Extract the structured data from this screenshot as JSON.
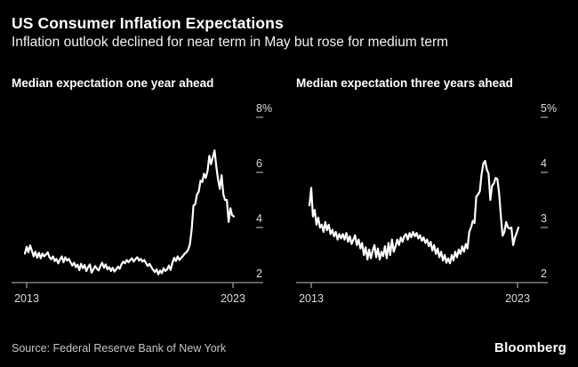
{
  "header": {
    "title": "US Consumer Inflation Expectations",
    "subtitle": "Inflation outlook declined for near term in May but rose for medium term"
  },
  "footer": {
    "source": "Source: Federal Reserve Bank of New York",
    "brand": "Bloomberg"
  },
  "colors": {
    "background": "#000000",
    "text_primary": "#ffffff",
    "axis_label": "#dcdcdc",
    "axis_line": "#9a9a9a",
    "data_line": "#ffffff",
    "source_text": "#c6c6c6"
  },
  "chart_data": [
    {
      "type": "line",
      "title": "Median expectation one year ahead",
      "unit": "%",
      "x_start": 2013.42,
      "x_step": "monthly",
      "x_ticks": [
        "2013",
        "2023"
      ],
      "y_ticks": [
        "8%",
        "6",
        "4",
        "2"
      ],
      "y_min": 2,
      "y_max": 8,
      "grid": false,
      "legend": "none",
      "values": [
        3.05,
        3.3,
        3.1,
        3.35,
        3.15,
        2.95,
        3.12,
        2.9,
        3.08,
        2.88,
        3.05,
        2.95,
        3.02,
        3.1,
        2.92,
        2.85,
        2.95,
        2.78,
        2.86,
        2.7,
        2.84,
        2.95,
        2.74,
        2.92,
        2.8,
        2.86,
        2.74,
        2.62,
        2.72,
        2.56,
        2.65,
        2.45,
        2.68,
        2.52,
        2.64,
        2.42,
        2.56,
        2.66,
        2.36,
        2.48,
        2.6,
        2.5,
        2.44,
        2.6,
        2.72,
        2.54,
        2.66,
        2.48,
        2.56,
        2.42,
        2.54,
        2.4,
        2.48,
        2.58,
        2.5,
        2.66,
        2.76,
        2.7,
        2.82,
        2.74,
        2.82,
        2.88,
        2.76,
        2.86,
        2.92,
        2.8,
        2.86,
        2.76,
        2.82,
        2.7,
        2.6,
        2.68,
        2.56,
        2.46,
        2.38,
        2.48,
        2.3,
        2.44,
        2.34,
        2.52,
        2.42,
        2.48,
        2.62,
        2.46,
        2.72,
        2.9,
        2.78,
        2.95,
        2.82,
        2.9,
        2.96,
        3.05,
        3.1,
        3.2,
        3.4,
        3.95,
        4.8,
        4.85,
        5.2,
        5.3,
        5.7,
        5.65,
        5.95,
        5.8,
        6.05,
        6.6,
        6.3,
        6.55,
        6.8,
        6.2,
        5.75,
        5.4,
        5.9,
        5.2,
        5.0,
        5.0,
        4.2,
        4.7,
        4.45,
        4.4
      ]
    },
    {
      "type": "line",
      "title": "Median expectation three years ahead",
      "unit": "%",
      "x_start": 2013.42,
      "x_step": "monthly",
      "x_ticks": [
        "2013",
        "2023"
      ],
      "y_ticks": [
        "5%",
        "4",
        "3",
        "2"
      ],
      "y_min": 2,
      "y_max": 5,
      "grid": false,
      "legend": "none",
      "values": [
        3.4,
        3.72,
        3.2,
        3.32,
        3.05,
        3.18,
        3.0,
        3.05,
        2.92,
        3.1,
        2.95,
        3.05,
        2.88,
        2.96,
        2.84,
        2.92,
        2.78,
        2.88,
        2.8,
        2.88,
        2.78,
        2.9,
        2.74,
        2.84,
        2.7,
        2.78,
        2.86,
        2.68,
        2.78,
        2.62,
        2.72,
        2.5,
        2.64,
        2.42,
        2.6,
        2.44,
        2.58,
        2.68,
        2.46,
        2.62,
        2.42,
        2.56,
        2.48,
        2.66,
        2.44,
        2.72,
        2.5,
        2.78,
        2.56,
        2.66,
        2.78,
        2.68,
        2.82,
        2.74,
        2.84,
        2.88,
        2.78,
        2.9,
        2.82,
        2.92,
        2.84,
        2.9,
        2.8,
        2.86,
        2.76,
        2.82,
        2.72,
        2.78,
        2.66,
        2.74,
        2.58,
        2.68,
        2.52,
        2.62,
        2.46,
        2.56,
        2.4,
        2.5,
        2.36,
        2.44,
        2.35,
        2.5,
        2.4,
        2.56,
        2.46,
        2.6,
        2.52,
        2.66,
        2.56,
        2.7,
        2.62,
        2.92,
        3.0,
        3.12,
        3.08,
        3.56,
        3.6,
        3.66,
        3.96,
        4.16,
        4.21,
        4.05,
        3.98,
        3.5,
        3.76,
        3.8,
        3.9,
        3.88,
        3.62,
        3.2,
        2.85,
        2.92,
        3.1,
        3.0,
        2.98,
        3.0,
        2.68,
        2.82,
        2.9,
        3.0
      ]
    }
  ]
}
